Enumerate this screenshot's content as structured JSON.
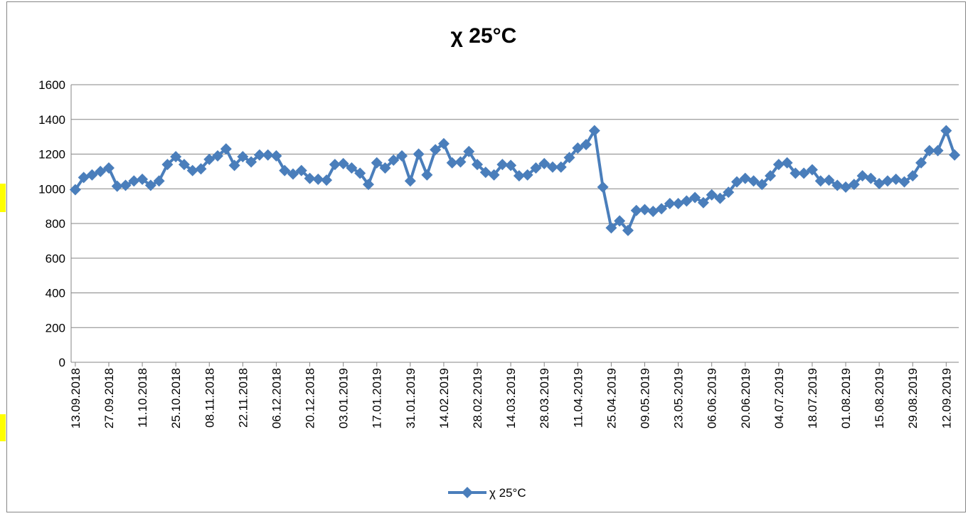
{
  "chart_data": {
    "type": "line",
    "title": "χ 25°C",
    "categories": [
      "13.09.2018",
      null,
      null,
      null,
      "27.09.2018",
      null,
      null,
      null,
      "11.10.2018",
      null,
      null,
      null,
      "25.10.2018",
      null,
      null,
      null,
      "08.11.2018",
      null,
      null,
      null,
      "22.11.2018",
      null,
      null,
      null,
      "06.12.2018",
      null,
      null,
      null,
      "20.12.2018",
      null,
      null,
      null,
      "03.01.2019",
      null,
      null,
      null,
      "17.01.2019",
      null,
      null,
      null,
      "31.01.2019",
      null,
      null,
      null,
      "14.02.2019",
      null,
      null,
      null,
      "28.02.2019",
      null,
      null,
      null,
      "14.03.2019",
      null,
      null,
      null,
      "28.03.2019",
      null,
      null,
      null,
      "11.04.2019",
      null,
      null,
      null,
      "25.04.2019",
      null,
      null,
      null,
      "09.05.2019",
      null,
      null,
      null,
      "23.05.2019",
      null,
      null,
      null,
      "06.06.2019",
      null,
      null,
      null,
      "20.06.2019",
      null,
      null,
      null,
      "04.07.2019",
      null,
      null,
      null,
      "18.07.2019",
      null,
      null,
      null,
      "01.08.2019",
      null,
      null,
      null,
      "15.08.2019",
      null,
      null,
      null,
      "29.08.2019",
      null,
      null,
      null,
      "12.09.2019",
      null
    ],
    "series": [
      {
        "name": "χ 25°C",
        "color": "#4a7ebb",
        "values": [
          995,
          1065,
          1080,
          1100,
          1120,
          1015,
          1020,
          1045,
          1055,
          1020,
          1045,
          1140,
          1185,
          1140,
          1105,
          1115,
          1170,
          1190,
          1230,
          1135,
          1185,
          1155,
          1195,
          1195,
          1190,
          1105,
          1085,
          1105,
          1060,
          1055,
          1050,
          1140,
          1145,
          1120,
          1090,
          1025,
          1150,
          1120,
          1165,
          1190,
          1045,
          1200,
          1080,
          1225,
          1260,
          1150,
          1155,
          1215,
          1140,
          1095,
          1080,
          1140,
          1135,
          1075,
          1080,
          1120,
          1145,
          1125,
          1125,
          1180,
          1235,
          1255,
          1335,
          1010,
          775,
          815,
          760,
          875,
          880,
          870,
          885,
          915,
          915,
          930,
          950,
          920,
          965,
          945,
          980,
          1040,
          1060,
          1045,
          1025,
          1075,
          1140,
          1150,
          1090,
          1090,
          1110,
          1045,
          1050,
          1020,
          1010,
          1025,
          1075,
          1060,
          1030,
          1045,
          1055,
          1040,
          1075,
          1150,
          1220,
          1220,
          1335,
          1195
        ]
      }
    ],
    "ylim": [
      0,
      1600
    ],
    "yticks": [
      0,
      200,
      400,
      600,
      800,
      1000,
      1200,
      1400,
      1600
    ],
    "grid": true,
    "legend": "bottom"
  }
}
